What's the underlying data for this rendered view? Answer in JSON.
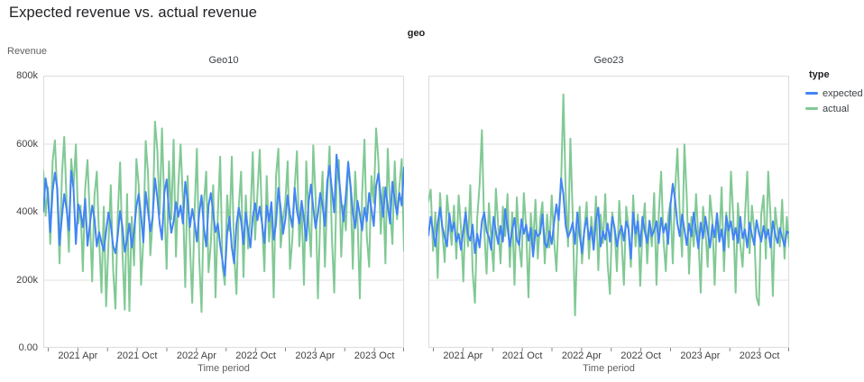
{
  "page": {
    "title": "Expected revenue vs. actual revenue"
  },
  "facet": {
    "label": "geo"
  },
  "axes": {
    "y_title": "Revenue",
    "x_title": "Time period",
    "y_ticks": [
      {
        "value_k": 800,
        "label": "800k"
      },
      {
        "value_k": 600,
        "label": "600k"
      },
      {
        "value_k": 400,
        "label": "400k"
      },
      {
        "value_k": 200,
        "label": "200k"
      },
      {
        "value_k": 0,
        "label": "0.00"
      }
    ],
    "x_tick_months": [
      0,
      3,
      6,
      9,
      12,
      15,
      18,
      21,
      24,
      27,
      30,
      33,
      36
    ],
    "x_labeled_ticks": [
      {
        "month": 3,
        "label": "2021 Apr"
      },
      {
        "month": 9,
        "label": "2021 Oct"
      },
      {
        "month": 15,
        "label": "2022 Apr"
      },
      {
        "month": 21,
        "label": "2022 Oct"
      },
      {
        "month": 27,
        "label": "2023 Apr"
      },
      {
        "month": 33,
        "label": "2023 Oct"
      }
    ]
  },
  "legend": {
    "title": "type"
  },
  "chart_data": {
    "type": "line",
    "title": "Expected revenue vs. actual revenue",
    "facet_field": "geo",
    "xlabel": "Time period",
    "ylabel": "Revenue",
    "unit": "thousands (k)",
    "ylim_k": [
      0,
      800
    ],
    "x_range": [
      "2021-01",
      "2023-12"
    ],
    "frequency": "weekly (estimated, 156 points per series)",
    "grid": "horizontal gridlines at 200k/400k/600k",
    "legend_position": "right",
    "series": [
      {
        "name": "expected",
        "color": "#4285f4"
      },
      {
        "name": "actual",
        "color": "#81c995"
      }
    ],
    "panels": [
      {
        "title": "Geo10",
        "expected_k": [
          400,
          498,
          452,
          340,
          460,
          515,
          470,
          302,
          385,
          452,
          408,
          345,
          520,
          468,
          305,
          422,
          398,
          355,
          438,
          300,
          362,
          418,
          380,
          298,
          340,
          310,
          285,
          342,
          398,
          362,
          300,
          278,
          330,
          402,
          355,
          282,
          318,
          365,
          295,
          342,
          415,
          452,
          388,
          310,
          458,
          402,
          342,
          385,
          498,
          442,
          365,
          318,
          455,
          495,
          402,
          338,
          372,
          428,
          385,
          418,
          365,
          488,
          432,
          355,
          408,
          368,
          312,
          395,
          448,
          352,
          298,
          418,
          455,
          395,
          340,
          365,
          302,
          255,
          212,
          335,
          385,
          295,
          248,
          362,
          412,
          372,
          305,
          398,
          345,
          295,
          385,
          425,
          375,
          415,
          365,
          308,
          418,
          372,
          428,
          318,
          365,
          470,
          410,
          335,
          378,
          448,
          392,
          355,
          470,
          402,
          365,
          432,
          378,
          315,
          428,
          480,
          412,
          352,
          395,
          455,
          418,
          358,
          488,
          535,
          465,
          398,
          568,
          502,
          432,
          372,
          448,
          545,
          478,
          398,
          352,
          432,
          392,
          345,
          412,
          372,
          455,
          408,
          358,
          475,
          512,
          445,
          385,
          472,
          418,
          365,
          488,
          435,
          392,
          455,
          418,
          530
        ],
        "actual_k": [
          520,
          388,
          472,
          305,
          548,
          610,
          452,
          248,
          505,
          620,
          432,
          282,
          555,
          472,
          598,
          365,
          418,
          225,
          468,
          552,
          385,
          195,
          448,
          518,
          318,
          162,
          415,
          122,
          305,
          478,
          232,
          115,
          388,
          545,
          285,
          112,
          452,
          108,
          385,
          242,
          555,
          478,
          185,
          318,
          608,
          512,
          272,
          378,
          665,
          582,
          392,
          645,
          418,
          232,
          548,
          378,
          612,
          268,
          475,
          598,
          432,
          178,
          505,
          305,
          132,
          398,
          585,
          262,
          105,
          425,
          518,
          222,
          308,
          478,
          148,
          392,
          562,
          238,
          185,
          448,
          345,
          562,
          278,
          158,
          415,
          518,
          208,
          448,
          292,
          388,
          575,
          318,
          452,
          582,
          368,
          225,
          505,
          312,
          418,
          148,
          505,
          585,
          295,
          378,
          428,
          548,
          232,
          318,
          472,
          578,
          298,
          415,
          185,
          548,
          378,
          268,
          595,
          442,
          145,
          385,
          518,
          238,
          448,
          592,
          325,
          162,
          478,
          552,
          268,
          418,
          345,
          548,
          472,
          232,
          518,
          385,
          145,
          452,
          612,
          328,
          238,
          505,
          425,
          645,
          548,
          335,
          472,
          248,
          585,
          412,
          305,
          548,
          378,
          472,
          555,
          285
        ]
      },
      {
        "title": "Geo23",
        "expected_k": [
          330,
          385,
          342,
          298,
          365,
          412,
          356,
          325,
          298,
          395,
          342,
          368,
          312,
          335,
          288,
          345,
          398,
          332,
          315,
          362,
          278,
          335,
          295,
          372,
          398,
          342,
          325,
          288,
          385,
          342,
          305,
          358,
          312,
          408,
          355,
          298,
          345,
          382,
          318,
          302,
          378,
          335,
          362,
          315,
          352,
          268,
          345,
          328,
          335,
          392,
          308,
          295,
          342,
          305,
          368,
          422,
          375,
          498,
          452,
          358,
          325,
          342,
          368,
          305,
          398,
          332,
          278,
          345,
          382,
          318,
          355,
          288,
          375,
          412,
          298,
          342,
          318,
          365,
          312,
          385,
          352,
          298,
          335,
          358,
          315,
          372,
          348,
          262,
          398,
          335,
          372,
          298,
          385,
          342,
          308,
          372,
          328,
          345,
          372,
          308,
          382,
          338,
          365,
          305,
          418,
          482,
          435,
          365,
          328,
          392,
          348,
          302,
          365,
          328,
          398,
          345,
          292,
          368,
          322,
          385,
          342,
          295,
          362,
          325,
          395,
          312,
          348,
          285,
          388,
          345,
          372,
          318,
          352,
          308,
          385,
          322,
          348,
          295,
          368,
          332,
          302,
          375,
          338,
          312,
          358,
          322,
          348,
          295,
          372,
          335,
          308,
          352,
          325,
          298,
          342,
          338
        ],
        "actual_k": [
          430,
          465,
          285,
          398,
          205,
          455,
          342,
          252,
          448,
          375,
          302,
          418,
          262,
          448,
          352,
          195,
          412,
          298,
          478,
          225,
          132,
          385,
          478,
          640,
          345,
          218,
          425,
          318,
          225,
          468,
          358,
          248,
          415,
          328,
          452,
          238,
          398,
          185,
          442,
          305,
          238,
          455,
          352,
          148,
          395,
          298,
          435,
          262,
          375,
          428,
          248,
          392,
          295,
          448,
          318,
          225,
          395,
          478,
          745,
          455,
          298,
          615,
          392,
          95,
          318,
          415,
          248,
          345,
          428,
          262,
          385,
          298,
          445,
          228,
          392,
          308,
          452,
          248,
          158,
          398,
          345,
          225,
          432,
          318,
          185,
          415,
          352,
          238,
          448,
          298,
          392,
          182,
          348,
          425,
          248,
          375,
          298,
          455,
          185,
          392,
          518,
          318,
          225,
          385,
          428,
          248,
          462,
          585,
          392,
          268,
          598,
          445,
          218,
          385,
          298,
          452,
          325,
          162,
          415,
          348,
          238,
          448,
          375,
          185,
          395,
          318,
          472,
          225,
          398,
          295,
          518,
          385,
          162,
          425,
          305,
          238,
          385,
          518,
          278,
          418,
          345,
          148,
          125,
          392,
          448,
          262,
          518,
          385,
          152,
          412,
          345,
          298,
          435,
          262,
          385,
          298
        ]
      }
    ]
  }
}
